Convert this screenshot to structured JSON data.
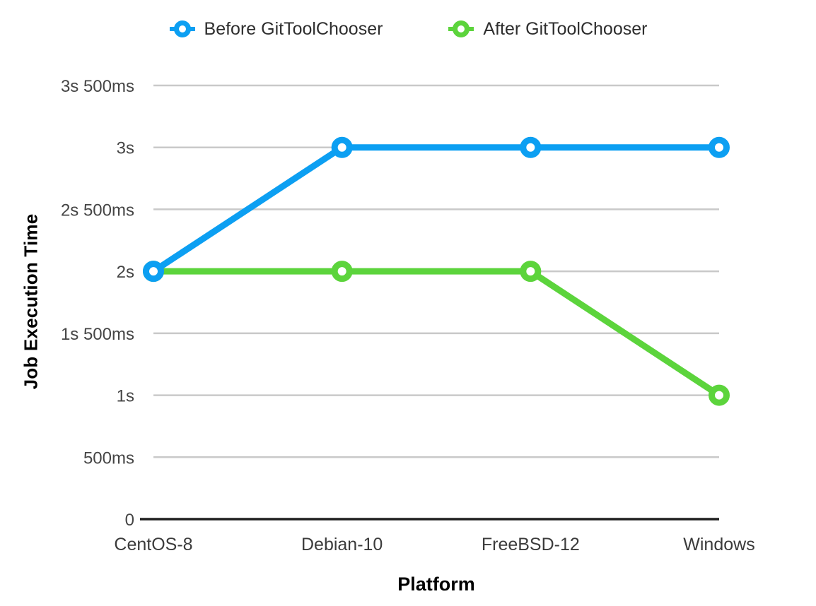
{
  "chart_data": {
    "type": "line",
    "title": "",
    "xlabel": "Platform",
    "ylabel": "Job Execution Time",
    "categories": [
      "CentOS-8",
      "Debian-10",
      "FreeBSD-12",
      "Windows"
    ],
    "series": [
      {
        "name": "Before GitToolChooser",
        "color": "#0C9FF2",
        "values_ms": [
          2000,
          3000,
          3000,
          3000
        ]
      },
      {
        "name": "After GitToolChooser",
        "color": "#5CD43C",
        "values_ms": [
          2000,
          2000,
          2000,
          1000
        ]
      }
    ],
    "y_axis": {
      "min_ms": 0,
      "max_ms": 3500,
      "tick_step_ms": 500,
      "tick_labels": [
        "0",
        "500ms",
        "1s",
        "1s 500ms",
        "2s",
        "2s 500ms",
        "3s",
        "3s 500ms"
      ]
    },
    "grid": true,
    "legend_position": "top",
    "colors": {
      "grid": "#c9c9c9",
      "axis": "#1f1f1f",
      "tick_text": "#454545",
      "category_text": "#3b3b3b",
      "legend_text": "#2e2e2e"
    },
    "marker_style": "ring"
  }
}
